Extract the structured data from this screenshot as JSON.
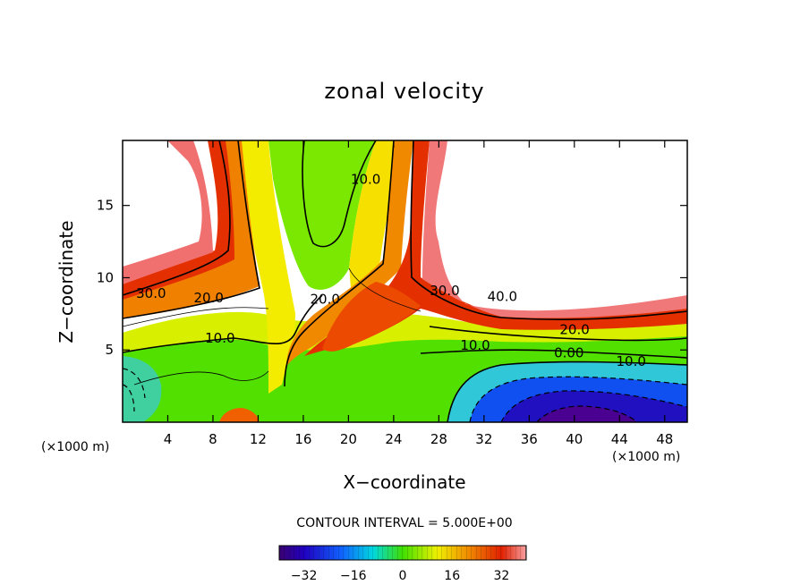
{
  "chart_data": {
    "type": "contour",
    "title": "zonal velocity",
    "xlabel": "X−coordinate",
    "ylabel": "Z−coordinate",
    "x_unit_left": "(×1000 m)",
    "x_unit_right": "(×1000 m)",
    "xlim": [
      0,
      50
    ],
    "ylim": [
      0,
      19.5
    ],
    "xticks": [
      4,
      8,
      12,
      16,
      20,
      24,
      28,
      32,
      36,
      40,
      44,
      48
    ],
    "yticks": [
      5,
      10,
      15
    ],
    "contour_interval_text": "CONTOUR INTERVAL = 5.000E+00",
    "colorbar": {
      "range": [
        -40,
        40
      ],
      "ticks": [
        -32,
        -16,
        0,
        16,
        32
      ],
      "tick_labels": [
        "−32",
        "−16",
        "0",
        "16",
        "32"
      ]
    },
    "colors": {
      "neg_deep": "#3a0070",
      "neg_blue": "#1020e0",
      "zero_green": "#40e000",
      "mid_yellow": "#f0f000",
      "pos_red": "#e02000",
      "pos_pink": "#f8a0a0"
    },
    "contour_labels": [
      {
        "text": "30.0",
        "x": 1.2,
        "y": 8.6
      },
      {
        "text": "20.0",
        "x": 6.3,
        "y": 8.3
      },
      {
        "text": "10.0",
        "x": 7.3,
        "y": 5.5
      },
      {
        "text": "20.0",
        "x": 16.6,
        "y": 8.2
      },
      {
        "text": "10.0",
        "x": 20.2,
        "y": 16.5
      },
      {
        "text": "30.0",
        "x": 27.2,
        "y": 8.8
      },
      {
        "text": "40.0",
        "x": 32.3,
        "y": 8.4
      },
      {
        "text": "20.0",
        "x": 38.7,
        "y": 6.1
      },
      {
        "text": "10.0",
        "x": 29.9,
        "y": 5.0
      },
      {
        "text": "0.00",
        "x": 38.2,
        "y": 4.5
      },
      {
        "text": "10.0",
        "x": 43.7,
        "y": 3.9
      }
    ]
  }
}
